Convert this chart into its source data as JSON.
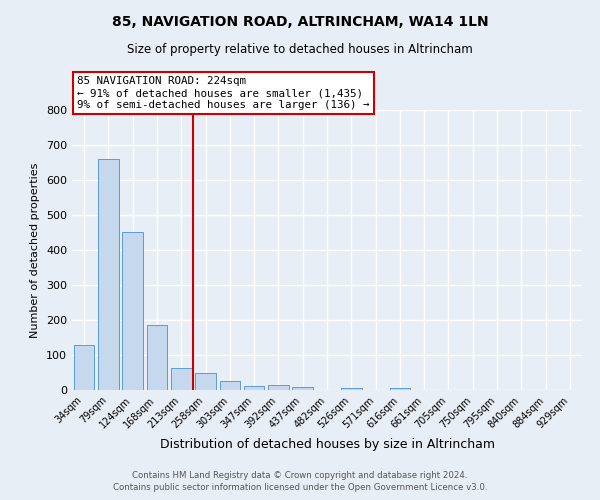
{
  "title": "85, NAVIGATION ROAD, ALTRINCHAM, WA14 1LN",
  "subtitle": "Size of property relative to detached houses in Altrincham",
  "xlabel": "Distribution of detached houses by size in Altrincham",
  "ylabel": "Number of detached properties",
  "bar_labels": [
    "34sqm",
    "79sqm",
    "124sqm",
    "168sqm",
    "213sqm",
    "258sqm",
    "303sqm",
    "347sqm",
    "392sqm",
    "437sqm",
    "482sqm",
    "526sqm",
    "571sqm",
    "616sqm",
    "661sqm",
    "705sqm",
    "750sqm",
    "795sqm",
    "840sqm",
    "884sqm",
    "929sqm"
  ],
  "bar_values": [
    130,
    660,
    450,
    185,
    62,
    50,
    27,
    12,
    14,
    10,
    0,
    7,
    0,
    7,
    0,
    0,
    0,
    0,
    0,
    0,
    0
  ],
  "bar_color": "#c5d8ed",
  "bar_edgecolor": "#5b9bd5",
  "ylim": [
    0,
    800
  ],
  "yticks": [
    0,
    100,
    200,
    300,
    400,
    500,
    600,
    700,
    800
  ],
  "vline_x_index": 4.5,
  "vline_color": "#cc0000",
  "annotation_title": "85 NAVIGATION ROAD: 224sqm",
  "annotation_line1": "← 91% of detached houses are smaller (1,435)",
  "annotation_line2": "9% of semi-detached houses are larger (136) →",
  "annotation_box_color": "#ffffff",
  "annotation_box_edgecolor": "#cc0000",
  "footer1": "Contains HM Land Registry data © Crown copyright and database right 2024.",
  "footer2": "Contains public sector information licensed under the Open Government Licence v3.0.",
  "bg_color": "#e8eef5",
  "plot_bg_color": "#e8eef5",
  "grid_color": "#ffffff"
}
